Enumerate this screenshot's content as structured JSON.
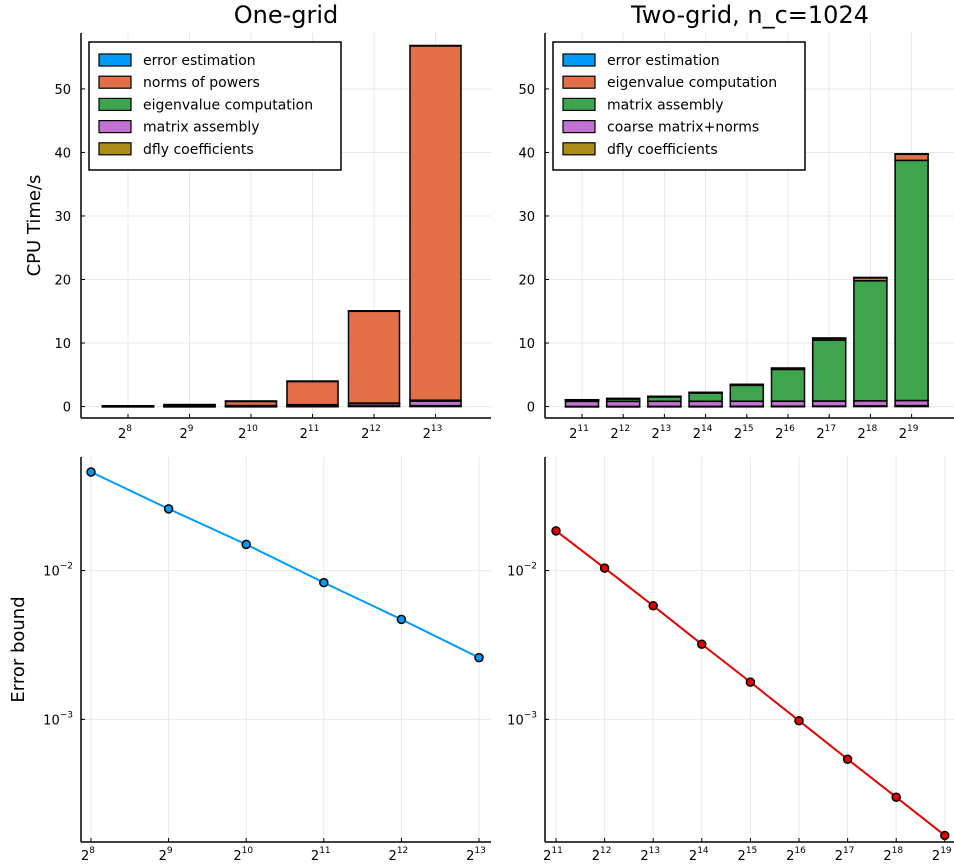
{
  "colors": {
    "blue": "#009af9",
    "orange": "#e26f46",
    "green": "#3ea44e",
    "purple": "#c271d2",
    "olive": "#ac8d18",
    "red": "#e30000"
  },
  "chart_data": [
    {
      "type": "bar",
      "stacked": true,
      "title": "One-grid",
      "ylabel": "CPU Time/s",
      "xlabel": "",
      "ylim": [
        -1.8,
        58.8
      ],
      "yticks": [
        0,
        10,
        20,
        30,
        40,
        50
      ],
      "grid": true,
      "legend_position": "top-left",
      "categories": [
        {
          "base": "2",
          "exp": "8"
        },
        {
          "base": "2",
          "exp": "9"
        },
        {
          "base": "2",
          "exp": "10"
        },
        {
          "base": "2",
          "exp": "11"
        },
        {
          "base": "2",
          "exp": "12"
        },
        {
          "base": "2",
          "exp": "13"
        }
      ],
      "series": [
        {
          "name": "dfly coefficients",
          "color": "#ac8d18",
          "values": [
            0.02,
            0.02,
            0.03,
            0.05,
            0.1,
            0.15
          ]
        },
        {
          "name": "matrix assembly",
          "color": "#c271d2",
          "values": [
            0.03,
            0.05,
            0.1,
            0.2,
            0.35,
            0.7
          ]
        },
        {
          "name": "eigenvalue computation",
          "color": "#3ea44e",
          "values": [
            0.02,
            0.03,
            0.03,
            0.05,
            0.1,
            0.15
          ]
        },
        {
          "name": "norms of powers",
          "color": "#e26f46",
          "values": [
            0.05,
            0.2,
            0.7,
            3.7,
            14.5,
            55.8
          ]
        },
        {
          "name": "error estimation",
          "color": "#009af9",
          "values": [
            0.01,
            0.01,
            0.01,
            0.01,
            0.02,
            0.03
          ]
        }
      ],
      "legend_order": [
        "error estimation",
        "norms of powers",
        "eigenvalue computation",
        "matrix assembly",
        "dfly coefficients"
      ]
    },
    {
      "type": "bar",
      "stacked": true,
      "title": "Two-grid, n_c=1024",
      "ylabel": "",
      "xlabel": "",
      "ylim": [
        -1.8,
        58.8
      ],
      "yticks": [
        0,
        10,
        20,
        30,
        40,
        50
      ],
      "grid": true,
      "legend_position": "top-left",
      "categories": [
        {
          "base": "2",
          "exp": "11"
        },
        {
          "base": "2",
          "exp": "12"
        },
        {
          "base": "2",
          "exp": "13"
        },
        {
          "base": "2",
          "exp": "14"
        },
        {
          "base": "2",
          "exp": "15"
        },
        {
          "base": "2",
          "exp": "16"
        },
        {
          "base": "2",
          "exp": "17"
        },
        {
          "base": "2",
          "exp": "18"
        },
        {
          "base": "2",
          "exp": "19"
        }
      ],
      "series": [
        {
          "name": "dfly coefficients",
          "color": "#ac8d18",
          "values": [
            0.02,
            0.02,
            0.03,
            0.03,
            0.04,
            0.05,
            0.07,
            0.1,
            0.15
          ]
        },
        {
          "name": "coarse matrix+norms",
          "color": "#c271d2",
          "values": [
            0.8,
            0.8,
            0.8,
            0.8,
            0.8,
            0.8,
            0.8,
            0.8,
            0.8
          ]
        },
        {
          "name": "matrix assembly",
          "color": "#3ea44e",
          "values": [
            0.2,
            0.4,
            0.7,
            1.3,
            2.5,
            5.0,
            9.6,
            18.9,
            37.8
          ]
        },
        {
          "name": "eigenvalue computation",
          "color": "#e26f46",
          "values": [
            0.05,
            0.05,
            0.07,
            0.1,
            0.15,
            0.2,
            0.3,
            0.5,
            1.0
          ]
        },
        {
          "name": "error estimation",
          "color": "#009af9",
          "values": [
            0.01,
            0.01,
            0.01,
            0.01,
            0.01,
            0.01,
            0.02,
            0.02,
            0.03
          ]
        }
      ],
      "legend_order": [
        "error estimation",
        "eigenvalue computation",
        "matrix assembly",
        "coarse matrix+norms",
        "dfly coefficients"
      ]
    },
    {
      "type": "line",
      "yscale": "log",
      "title": "",
      "ylabel": "Error bound",
      "xlabel": "",
      "ylim": [
        0.00015,
        0.058
      ],
      "yticks": [
        {
          "value": 0.01,
          "base": "10",
          "exp": "−2"
        },
        {
          "value": 0.001,
          "base": "10",
          "exp": "−3"
        }
      ],
      "grid": true,
      "x": [
        {
          "base": "2",
          "exp": "8"
        },
        {
          "base": "2",
          "exp": "9"
        },
        {
          "base": "2",
          "exp": "10"
        },
        {
          "base": "2",
          "exp": "11"
        },
        {
          "base": "2",
          "exp": "12"
        },
        {
          "base": "2",
          "exp": "13"
        }
      ],
      "series": [
        {
          "color": "#009af9",
          "values": [
            0.046,
            0.026,
            0.015,
            0.0083,
            0.0047,
            0.0026
          ]
        }
      ]
    },
    {
      "type": "line",
      "yscale": "log",
      "title": "",
      "ylabel": "",
      "xlabel": "",
      "ylim": [
        0.00015,
        0.058
      ],
      "yticks": [
        {
          "value": 0.01,
          "base": "10",
          "exp": "−2"
        },
        {
          "value": 0.001,
          "base": "10",
          "exp": "−3"
        }
      ],
      "grid": true,
      "x": [
        {
          "base": "2",
          "exp": "11"
        },
        {
          "base": "2",
          "exp": "12"
        },
        {
          "base": "2",
          "exp": "13"
        },
        {
          "base": "2",
          "exp": "14"
        },
        {
          "base": "2",
          "exp": "15"
        },
        {
          "base": "2",
          "exp": "16"
        },
        {
          "base": "2",
          "exp": "17"
        },
        {
          "base": "2",
          "exp": "18"
        },
        {
          "base": "2",
          "exp": "19"
        }
      ],
      "series": [
        {
          "color": "#e30000",
          "values": [
            0.0185,
            0.0104,
            0.0058,
            0.0032,
            0.00178,
            0.00098,
            0.00054,
            0.0003,
            0.000166
          ]
        }
      ]
    }
  ]
}
